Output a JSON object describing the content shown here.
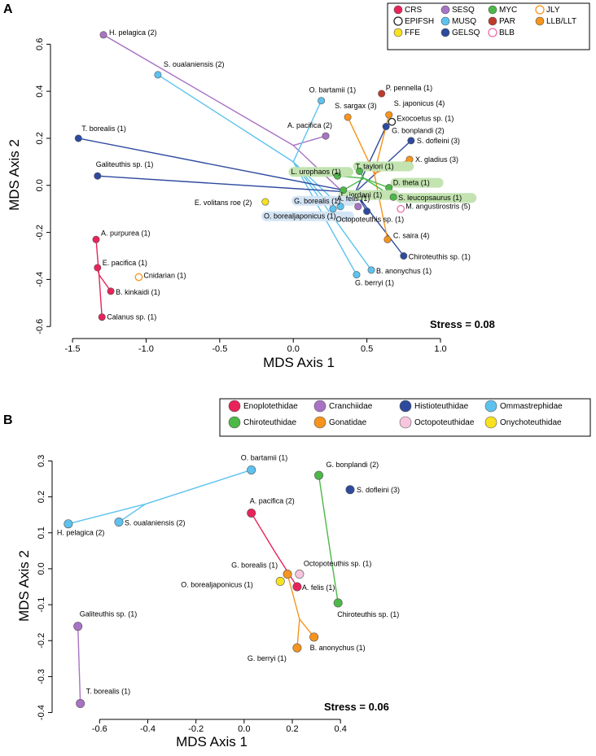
{
  "chart_data": [
    {
      "type": "scatter",
      "panel_label": "A",
      "xlabel": "MDS Axis 1",
      "ylabel": "MDS Axis 2",
      "xlim": [
        -1.6,
        1.0
      ],
      "ylim": [
        -0.62,
        0.66
      ],
      "xticks": [
        "-1.5",
        "-1.0",
        "-0.5",
        "0.0",
        "0.5",
        "1.0"
      ],
      "xtick_values": [
        -1.5,
        -1.0,
        -0.5,
        0.0,
        0.5,
        1.0
      ],
      "yticks": [
        "-0.6",
        "-0.4",
        "-0.2",
        "0.0",
        "0.2",
        "0.4",
        "0.6"
      ],
      "ytick_values": [
        -0.6,
        -0.4,
        -0.2,
        0.0,
        0.2,
        0.4,
        0.6
      ],
      "stress": "Stress = 0.08",
      "legend_position": "top-right",
      "legend": [
        {
          "label": "CRS",
          "color": "#e8235a",
          "hollow": false
        },
        {
          "label": "SESQ",
          "color": "#a873c4",
          "hollow": false
        },
        {
          "label": "MYC",
          "color": "#4cb848",
          "hollow": false
        },
        {
          "label": "JLY",
          "color": "#f7941d",
          "hollow": true
        },
        {
          "label": "EPIFSH",
          "color": "#222222",
          "hollow": true
        },
        {
          "label": "MUSQ",
          "color": "#5ec2ef",
          "hollow": false
        },
        {
          "label": "PAR",
          "color": "#c1392b",
          "hollow": false
        },
        {
          "label": "LLB/LLT",
          "color": "#f7941d",
          "hollow": false
        },
        {
          "label": "FFE",
          "color": "#f8e21f",
          "hollow": false
        },
        {
          "label": "GELSQ",
          "color": "#2e4a9e",
          "hollow": false
        },
        {
          "label": "BLB",
          "color": "#ef6aa8",
          "hollow": true
        }
      ],
      "points": [
        {
          "label": "H. pelagica (2)",
          "x": -1.29,
          "y": 0.64,
          "color": "#a873c4",
          "hollow": false,
          "highlight": ""
        },
        {
          "label": "S. oualaniensis (2)",
          "x": -0.92,
          "y": 0.47,
          "color": "#5ec2ef",
          "hollow": false,
          "highlight": ""
        },
        {
          "label": "T. borealis (1)",
          "x": -1.46,
          "y": 0.2,
          "color": "#2e4a9e",
          "hollow": false,
          "highlight": ""
        },
        {
          "label": "Galiteuthis sp. (1)",
          "x": -1.33,
          "y": 0.04,
          "color": "#2e4a9e",
          "hollow": false,
          "highlight": ""
        },
        {
          "label": "A. purpurea (1)",
          "x": -1.34,
          "y": -0.23,
          "color": "#e8235a",
          "hollow": false,
          "highlight": ""
        },
        {
          "label": "E. pacifica (1)",
          "x": -1.33,
          "y": -0.35,
          "color": "#e8235a",
          "hollow": false,
          "highlight": ""
        },
        {
          "label": "Cnidarian (1)",
          "x": -1.05,
          "y": -0.39,
          "color": "#f7941d",
          "hollow": true,
          "highlight": ""
        },
        {
          "label": "B. kinkaidi (1)",
          "x": -1.24,
          "y": -0.45,
          "color": "#e8235a",
          "hollow": false,
          "highlight": ""
        },
        {
          "label": "Calanus sp. (1)",
          "x": -1.3,
          "y": -0.56,
          "color": "#e8235a",
          "hollow": false,
          "highlight": ""
        },
        {
          "label": "O. bartamii (1)",
          "x": 0.19,
          "y": 0.36,
          "color": "#5ec2ef",
          "hollow": false,
          "highlight": ""
        },
        {
          "label": "A. pacifica (2)",
          "x": 0.22,
          "y": 0.21,
          "color": "#a873c4",
          "hollow": false,
          "highlight": ""
        },
        {
          "label": "P. pennella (1)",
          "x": 0.6,
          "y": 0.39,
          "color": "#c1392b",
          "hollow": false,
          "highlight": ""
        },
        {
          "label": "S. sargax (3)",
          "x": 0.37,
          "y": 0.29,
          "color": "#f7941d",
          "hollow": false,
          "highlight": ""
        },
        {
          "label": "S. japonicus (4)",
          "x": 0.65,
          "y": 0.3,
          "color": "#f7941d",
          "hollow": false,
          "highlight": ""
        },
        {
          "label": "Exocoetus sp. (1)",
          "x": 0.67,
          "y": 0.27,
          "color": "#222222",
          "hollow": true,
          "highlight": ""
        },
        {
          "label": "G. bonplandi (2)",
          "x": 0.63,
          "y": 0.25,
          "color": "#2e4a9e",
          "hollow": false,
          "highlight": ""
        },
        {
          "label": "S. dofleini (3)",
          "x": 0.8,
          "y": 0.19,
          "color": "#2e4a9e",
          "hollow": false,
          "highlight": ""
        },
        {
          "label": "X. gladius (3)",
          "x": 0.79,
          "y": 0.11,
          "color": "#f7941d",
          "hollow": false,
          "highlight": ""
        },
        {
          "label": "T. taylori (1)",
          "x": 0.45,
          "y": 0.06,
          "color": "#4cb848",
          "hollow": false,
          "highlight": "#c3e3b1"
        },
        {
          "label": "L. urophaos (1)",
          "x": 0.3,
          "y": 0.04,
          "color": "#4cb848",
          "hollow": false,
          "highlight": "#c3e3b1"
        },
        {
          "label": "D. theta (1)",
          "x": 0.65,
          "y": -0.01,
          "color": "#4cb848",
          "hollow": false,
          "highlight": "#c3e3b1"
        },
        {
          "label": "L. jordani (1)",
          "x": 0.34,
          "y": -0.02,
          "color": "#4cb848",
          "hollow": false,
          "highlight": "#c3e3b1"
        },
        {
          "label": "S. leucopsaurus (1)",
          "x": 0.68,
          "y": -0.05,
          "color": "#4cb848",
          "hollow": false,
          "highlight": "#c3e3b1"
        },
        {
          "label": "E. volitans roe (2)",
          "x": -0.19,
          "y": -0.07,
          "color": "#f8e21f",
          "hollow": false,
          "highlight": ""
        },
        {
          "label": "G. borealis (1)",
          "x": 0.32,
          "y": -0.09,
          "color": "#5ec2ef",
          "hollow": false,
          "highlight": "#d3e4f4"
        },
        {
          "label": "A. felis (1)",
          "x": 0.44,
          "y": -0.09,
          "color": "#a873c4",
          "hollow": false,
          "highlight": ""
        },
        {
          "label": "O. borealjaponicus (1)",
          "x": 0.27,
          "y": -0.1,
          "color": "#5ec2ef",
          "hollow": false,
          "highlight": "#d3e4f4"
        },
        {
          "label": "Octopoteuthis sp. (1)",
          "x": 0.5,
          "y": -0.11,
          "color": "#2e4a9e",
          "hollow": false,
          "highlight": ""
        },
        {
          "label": "M. angustirostris (5)",
          "x": 0.73,
          "y": -0.1,
          "color": "#ef6aa8",
          "hollow": true,
          "highlight": ""
        },
        {
          "label": "C. saira (4)",
          "x": 0.64,
          "y": -0.23,
          "color": "#f7941d",
          "hollow": false,
          "highlight": ""
        },
        {
          "label": "Chiroteuthis sp. (1)",
          "x": 0.75,
          "y": -0.3,
          "color": "#2e4a9e",
          "hollow": false,
          "highlight": ""
        },
        {
          "label": "B. anonychus (1)",
          "x": 0.53,
          "y": -0.36,
          "color": "#5ec2ef",
          "hollow": false,
          "highlight": ""
        },
        {
          "label": "G. berryi (1)",
          "x": 0.43,
          "y": -0.38,
          "color": "#5ec2ef",
          "hollow": false,
          "highlight": ""
        }
      ],
      "centroids": [
        {
          "color": "#a873c4",
          "x": 0.0,
          "y": 0.17
        },
        {
          "color": "#5ec2ef",
          "x": 0.0,
          "y": 0.1
        },
        {
          "color": "#2e4a9e",
          "x": 0.42,
          "y": -0.03
        },
        {
          "color": "#f7941d",
          "x": 0.55,
          "y": 0.05
        },
        {
          "color": "#4cb848",
          "x": 0.48,
          "y": 0.03
        },
        {
          "color": "#e8235a",
          "x": -1.32,
          "y": -0.38
        }
      ]
    },
    {
      "type": "scatter",
      "panel_label": "B",
      "xlabel": "MDS Axis 1",
      "ylabel": "MDS Axis 2",
      "xlim": [
        -0.76,
        0.44
      ],
      "ylim": [
        -0.41,
        0.31
      ],
      "xticks": [
        "-0.6",
        "-0.4",
        "-0.2",
        "0.0",
        "0.2",
        "0.4"
      ],
      "xtick_values": [
        -0.6,
        -0.4,
        -0.2,
        0.0,
        0.2,
        0.4
      ],
      "yticks": [
        "-0.4",
        "-0.3",
        "-0.2",
        "-0.1",
        "0.0",
        "0.1",
        "0.2",
        "0.3"
      ],
      "ytick_values": [
        -0.4,
        -0.3,
        -0.2,
        -0.1,
        0.0,
        0.1,
        0.2,
        0.3
      ],
      "stress": "Stress = 0.06",
      "legend_position": "top-right",
      "legend": [
        {
          "label": "Enoplotethidae",
          "color": "#e8235a"
        },
        {
          "label": "Cranchiidae",
          "color": "#a873c4"
        },
        {
          "label": "Histioteuthidae",
          "color": "#2e4a9e"
        },
        {
          "label": "Ommastrephidae",
          "color": "#5ec2ef"
        },
        {
          "label": "Chiroteuthidae",
          "color": "#4cb848"
        },
        {
          "label": "Gonatidae",
          "color": "#f7941d"
        },
        {
          "label": "Octopoteuthidae",
          "color": "#f7c6de"
        },
        {
          "label": "Onychoteuthidae",
          "color": "#f8e21f"
        }
      ],
      "points": [
        {
          "label": "O. bartamii (1)",
          "x": 0.03,
          "y": 0.275,
          "color": "#5ec2ef"
        },
        {
          "label": "G. bonplandi (2)",
          "x": 0.31,
          "y": 0.26,
          "color": "#4cb848"
        },
        {
          "label": "S. dofleini (3)",
          "x": 0.44,
          "y": 0.22,
          "color": "#2e4a9e"
        },
        {
          "label": "A. pacifica (2)",
          "x": 0.03,
          "y": 0.155,
          "color": "#e8235a"
        },
        {
          "label": "S. oualaniensis (2)",
          "x": -0.52,
          "y": 0.13,
          "color": "#5ec2ef"
        },
        {
          "label": "H. pelagica (2)",
          "x": -0.73,
          "y": 0.125,
          "color": "#5ec2ef"
        },
        {
          "label": "G. borealis (1)",
          "x": 0.18,
          "y": -0.015,
          "color": "#f7941d"
        },
        {
          "label": "Octopoteuthis sp. (1)",
          "x": 0.23,
          "y": -0.015,
          "color": "#f7c6de"
        },
        {
          "label": "O. borealjaponicus (1)",
          "x": 0.15,
          "y": -0.035,
          "color": "#f8e21f"
        },
        {
          "label": "A. felis (1)",
          "x": 0.22,
          "y": -0.05,
          "color": "#e8235a"
        },
        {
          "label": "Chiroteuthis sp. (1)",
          "x": 0.39,
          "y": -0.095,
          "color": "#4cb848"
        },
        {
          "label": "Galiteuthis sp. (1)",
          "x": -0.69,
          "y": -0.16,
          "color": "#a873c4"
        },
        {
          "label": "B. anonychus (1)",
          "x": 0.29,
          "y": -0.19,
          "color": "#f7941d"
        },
        {
          "label": "G. berryi (1)",
          "x": 0.22,
          "y": -0.22,
          "color": "#f7941d"
        },
        {
          "label": "T. borealis (1)",
          "x": -0.68,
          "y": -0.375,
          "color": "#a873c4"
        }
      ],
      "centroids": [
        {
          "color": "#5ec2ef",
          "x": -0.41,
          "y": 0.18
        },
        {
          "color": "#4cb848",
          "x": 0.35,
          "y": 0.08
        },
        {
          "color": "#e8235a",
          "x": 0.125,
          "y": 0.05
        },
        {
          "color": "#f7941d",
          "x": 0.23,
          "y": -0.14
        },
        {
          "color": "#a873c4",
          "x": -0.685,
          "y": -0.27
        }
      ]
    }
  ]
}
